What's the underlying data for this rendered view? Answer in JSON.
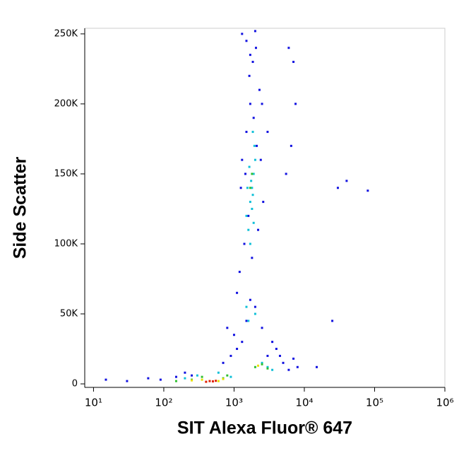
{
  "chart_data": {
    "type": "scatter",
    "x_label": "SIT Alexa Fluor® 647",
    "y_label": "Side Scatter",
    "xscale": "log",
    "xlim": [
      7.5,
      1000000
    ],
    "ylim": [
      -2500,
      254000
    ],
    "xticks": [
      {
        "value": 10,
        "label": "10¹"
      },
      {
        "value": 100,
        "label": "10²"
      },
      {
        "value": 1000,
        "label": "10³"
      },
      {
        "value": 10000,
        "label": "10⁴"
      },
      {
        "value": 100000,
        "label": "10⁵"
      },
      {
        "value": 1000000,
        "label": "10⁶"
      }
    ],
    "yticks": [
      0,
      {
        "value": 50000,
        "label": "50K"
      },
      {
        "value": 100000,
        "label": "100K"
      },
      {
        "value": 150000,
        "label": "150K"
      },
      {
        "value": 200000,
        "label": "200K"
      },
      {
        "value": 250000,
        "label": "250K"
      }
    ],
    "series": [
      {
        "color": "#1010e0",
        "x": [
          15,
          30,
          60,
          90,
          150,
          200,
          250,
          700,
          900,
          1100,
          1300,
          1500,
          1700,
          2000,
          2500,
          3000,
          4000,
          5000,
          6000,
          7000,
          8000,
          1200,
          1400,
          1600,
          1800,
          2200,
          2600,
          1300,
          1500,
          1700,
          1900,
          2100,
          2300,
          1250,
          1450,
          1650,
          1850,
          2050,
          2400,
          1300,
          1500,
          1700,
          2000,
          2500,
          3000,
          5500,
          6500,
          7500,
          6000,
          7000,
          1000,
          800,
          1100,
          3500,
          4500,
          15000,
          30000,
          40000,
          25000,
          80000
        ],
        "y": [
          3000,
          2000,
          4000,
          3000,
          5000,
          8000,
          6000,
          15000,
          20000,
          25000,
          30000,
          45000,
          60000,
          55000,
          40000,
          20000,
          25000,
          15000,
          10000,
          18000,
          12000,
          80000,
          100000,
          120000,
          90000,
          110000,
          130000,
          160000,
          180000,
          200000,
          190000,
          170000,
          210000,
          140000,
          150000,
          220000,
          230000,
          240000,
          160000,
          250000,
          245000,
          235000,
          252000,
          200000,
          180000,
          150000,
          170000,
          200000,
          240000,
          230000,
          35000,
          40000,
          65000,
          30000,
          20000,
          12000,
          140000,
          145000,
          45000,
          138000
        ]
      },
      {
        "color": "#10c0d8",
        "x": [
          1500,
          1700,
          1800,
          1900,
          2000,
          1600,
          1750,
          1850,
          1950,
          1650,
          1800,
          1700,
          1900,
          1550,
          1850,
          300,
          600,
          900,
          200,
          2500,
          3000,
          3500,
          2000,
          1500,
          1600
        ],
        "y": [
          120000,
          130000,
          140000,
          150000,
          160000,
          110000,
          145000,
          135000,
          170000,
          155000,
          125000,
          100000,
          115000,
          140000,
          180000,
          6000,
          8000,
          5000,
          4000,
          15000,
          12000,
          10000,
          50000,
          55000,
          45000
        ]
      },
      {
        "color": "#30c030",
        "x": [
          150,
          250,
          350,
          700,
          800,
          2000,
          2500,
          3000,
          1700,
          1800
        ],
        "y": [
          2000,
          3000,
          5000,
          4000,
          6000,
          12000,
          14000,
          11000,
          140000,
          150000
        ]
      },
      {
        "color": "#e8e000",
        "x": [
          250,
          350,
          600,
          700,
          2200
        ],
        "y": [
          2500,
          3000,
          2000,
          3500,
          13000
        ]
      },
      {
        "color": "#e02000",
        "x": [
          400,
          450,
          500,
          550
        ],
        "y": [
          1500,
          2000,
          1800,
          2200
        ]
      }
    ]
  }
}
